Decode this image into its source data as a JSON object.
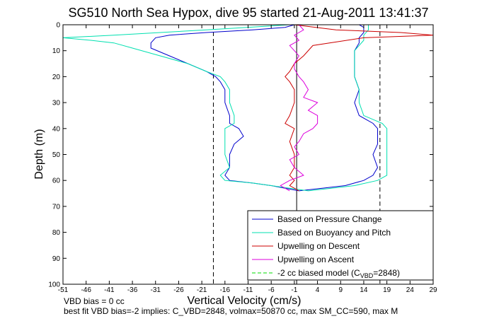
{
  "chart_data": {
    "type": "line",
    "title": "SG510 North Sea Hypox, dive 95 started 21-Aug-2011 13:41:37",
    "xlabel": "Vertical Velocity (cm/s)",
    "ylabel": "Depth (m)",
    "xlim": [
      -51,
      29
    ],
    "ylim": [
      100,
      0
    ],
    "y_reversed": true,
    "grid": false,
    "legend_position": "bottom-right",
    "x_ticks": [
      -51,
      -46,
      -41,
      -36,
      -31,
      -26,
      -21,
      -16,
      -11,
      -6,
      -1,
      4,
      9,
      14,
      19,
      24,
      29
    ],
    "y_ticks": [
      0,
      10,
      20,
      30,
      40,
      50,
      60,
      70,
      80,
      90,
      100
    ],
    "reference_lines": {
      "vertical_dashed": [
        -18.5,
        17.5
      ],
      "vertical_solid": [
        -0.5
      ]
    },
    "series": [
      {
        "name": "Based on Pressure Change",
        "color": "#0000cc",
        "depth": [
          0,
          1,
          2,
          3,
          4,
          5,
          7,
          9,
          12,
          15,
          18,
          20,
          22,
          25,
          30,
          35,
          38,
          40,
          43,
          46,
          50,
          55,
          58,
          60,
          61,
          62,
          63,
          64,
          63,
          62,
          60,
          58,
          55,
          50,
          46,
          42,
          40,
          38,
          35,
          30,
          25,
          20,
          15,
          10,
          7,
          5,
          3,
          1,
          0
        ],
        "velocity": [
          -1,
          -3,
          -10,
          -20,
          -28,
          -31,
          -32,
          -32,
          -28,
          -24,
          -20,
          -18,
          -17,
          -16,
          -16,
          -15,
          -15,
          -13,
          -12,
          -14,
          -15,
          -15,
          -16,
          -15,
          -10,
          -6,
          -3,
          0,
          5,
          10,
          14,
          16,
          17,
          16,
          17,
          17,
          17,
          16,
          13,
          12,
          13,
          12,
          12,
          12,
          13,
          13,
          14,
          14,
          13
        ]
      },
      {
        "name": "Based on Buoyancy and Pitch",
        "color": "#00e0b0",
        "depth": [
          0,
          2,
          4,
          5,
          6,
          7,
          9,
          12,
          15,
          18,
          20,
          22,
          25,
          30,
          35,
          38,
          40,
          45,
          50,
          55,
          58,
          60,
          61,
          62,
          63,
          64,
          63,
          62,
          60,
          58,
          55,
          50,
          45,
          40,
          38,
          35,
          30,
          25,
          20,
          15,
          10,
          6,
          4,
          2,
          0
        ],
        "velocity": [
          -2,
          -20,
          -40,
          -51,
          -45,
          -40,
          -36,
          -30,
          -24,
          -20,
          -17,
          -16,
          -15,
          -15,
          -14,
          -14,
          -16,
          -16,
          -16,
          -15,
          -17,
          -16,
          -10,
          -6,
          -2,
          2,
          7,
          12,
          17,
          19,
          19,
          19,
          19,
          19,
          18,
          14,
          13,
          13,
          12,
          12,
          12,
          14,
          14,
          15,
          15
        ]
      },
      {
        "name": "Upwelling on Descent",
        "color": "#cc0000",
        "depth": [
          0,
          2,
          3,
          4,
          5,
          8,
          12,
          15,
          18,
          20,
          22,
          25,
          30,
          35,
          38,
          40,
          45,
          50,
          55,
          58,
          60,
          62,
          63,
          64
        ],
        "velocity": [
          -1,
          8,
          22,
          29,
          14,
          3,
          1,
          -1,
          -2,
          -3,
          -2,
          -1,
          -1,
          -2,
          -3,
          -1,
          -2,
          -1,
          -1,
          -2,
          -1,
          -2,
          -1,
          0
        ]
      },
      {
        "name": "Upwelling on Ascent",
        "color": "#dd00dd",
        "depth": [
          64,
          62,
          60,
          58,
          55,
          52,
          50,
          47,
          45,
          42,
          40,
          38,
          35,
          33,
          30,
          28,
          25,
          22,
          20,
          17,
          15,
          12,
          10,
          8,
          6,
          4,
          2,
          0
        ],
        "velocity": [
          -2,
          -4,
          -2,
          1,
          -1,
          -2,
          0,
          -1,
          0,
          1,
          3,
          4,
          4,
          2,
          4,
          1,
          2,
          1,
          0,
          -1,
          -1,
          0,
          -1,
          -2,
          0,
          -1,
          1,
          0
        ]
      },
      {
        "name": "-2 cc biased model (C_VBD=2848)",
        "color": "#00dd00",
        "dashed": true,
        "depth": [],
        "velocity": []
      }
    ]
  },
  "legend": {
    "items": [
      {
        "label": "Based on Pressure Change",
        "color": "#0000cc",
        "dash": false
      },
      {
        "label": "Based on Buoyancy and Pitch",
        "color": "#00e0b0",
        "dash": false
      },
      {
        "label": "Upwelling on Descent",
        "color": "#cc0000",
        "dash": false
      },
      {
        "label": "Upwelling on Ascent",
        "color": "#dd00dd",
        "dash": false
      },
      {
        "label": "-2 cc biased model (C",
        "sub": "VBD",
        "tail": "=2848)",
        "color": "#00dd00",
        "dash": true
      }
    ]
  },
  "notes": {
    "line1": "VBD bias = 0 cc",
    "line2": "best fit VBD bias=-2 implies: C_VBD=2848, volmax=50870 cc, max SM_CC=590, max M"
  }
}
